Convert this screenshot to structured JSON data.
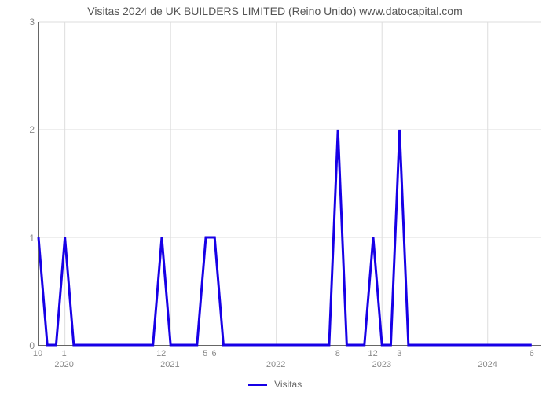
{
  "chart": {
    "type": "line",
    "title": "Visitas 2024 de UK BUILDERS LIMITED (Reino Unido) www.datocapital.com",
    "title_fontsize": 14,
    "title_color": "#555555",
    "background_color": "#ffffff",
    "grid_color": "#dddddd",
    "axis_color": "#666666",
    "tick_color": "#888888",
    "tick_fontsize": 12,
    "ylim": [
      0,
      3
    ],
    "ytick_step": 1,
    "yticks": [
      0,
      1,
      2,
      3
    ],
    "x_total_months": 57,
    "x_ticks_top": [
      {
        "pos": 0,
        "label": "10"
      },
      {
        "pos": 3,
        "label": "1"
      },
      {
        "pos": 14,
        "label": "12"
      },
      {
        "pos": 19,
        "label": "5"
      },
      {
        "pos": 20,
        "label": "6"
      },
      {
        "pos": 34,
        "label": "8"
      },
      {
        "pos": 38,
        "label": "12"
      },
      {
        "pos": 41,
        "label": "3"
      },
      {
        "pos": 56,
        "label": "6"
      }
    ],
    "x_ticks_year": [
      {
        "pos": 3,
        "label": "2020"
      },
      {
        "pos": 15,
        "label": "2021"
      },
      {
        "pos": 27,
        "label": "2022"
      },
      {
        "pos": 39,
        "label": "2023"
      },
      {
        "pos": 51,
        "label": "2024"
      }
    ],
    "series": {
      "label": "Visitas",
      "color": "#1700e6",
      "line_width": 3,
      "points": [
        [
          0,
          1
        ],
        [
          1,
          0
        ],
        [
          2,
          0
        ],
        [
          3,
          1
        ],
        [
          4,
          0
        ],
        [
          5,
          0
        ],
        [
          6,
          0
        ],
        [
          7,
          0
        ],
        [
          8,
          0
        ],
        [
          9,
          0
        ],
        [
          10,
          0
        ],
        [
          11,
          0
        ],
        [
          12,
          0
        ],
        [
          13,
          0
        ],
        [
          14,
          1
        ],
        [
          15,
          0
        ],
        [
          16,
          0
        ],
        [
          17,
          0
        ],
        [
          18,
          0
        ],
        [
          19,
          1
        ],
        [
          20,
          1
        ],
        [
          21,
          0
        ],
        [
          22,
          0
        ],
        [
          23,
          0
        ],
        [
          24,
          0
        ],
        [
          25,
          0
        ],
        [
          26,
          0
        ],
        [
          27,
          0
        ],
        [
          28,
          0
        ],
        [
          29,
          0
        ],
        [
          30,
          0
        ],
        [
          31,
          0
        ],
        [
          32,
          0
        ],
        [
          33,
          0
        ],
        [
          34,
          2
        ],
        [
          35,
          0
        ],
        [
          36,
          0
        ],
        [
          37,
          0
        ],
        [
          38,
          1
        ],
        [
          39,
          0
        ],
        [
          40,
          0
        ],
        [
          41,
          2
        ],
        [
          42,
          0
        ],
        [
          43,
          0
        ],
        [
          44,
          0
        ],
        [
          45,
          0
        ],
        [
          46,
          0
        ],
        [
          47,
          0
        ],
        [
          48,
          0
        ],
        [
          49,
          0
        ],
        [
          50,
          0
        ],
        [
          51,
          0
        ],
        [
          52,
          0
        ],
        [
          53,
          0
        ],
        [
          54,
          0
        ],
        [
          55,
          0
        ],
        [
          56,
          0
        ]
      ]
    },
    "legend_position": "bottom-center"
  }
}
